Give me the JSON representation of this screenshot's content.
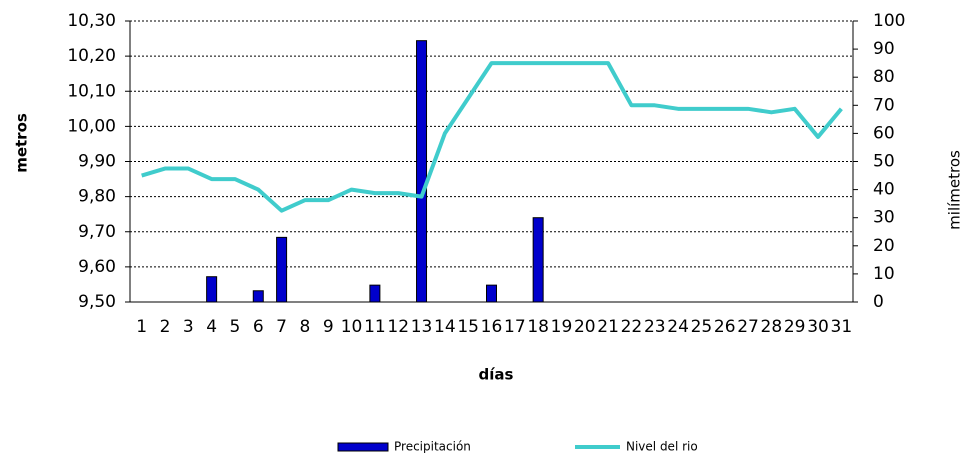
{
  "chart_data": {
    "type": "bar_line",
    "xlabel": "días",
    "ylabel": "metros",
    "y2label": "milímetros",
    "categories": [
      "1",
      "2",
      "3",
      "4",
      "5",
      "6",
      "7",
      "8",
      "9",
      "10",
      "11",
      "12",
      "13",
      "14",
      "15",
      "16",
      "17",
      "18",
      "19",
      "20",
      "21",
      "22",
      "23",
      "24",
      "25",
      "26",
      "27",
      "28",
      "29",
      "30",
      "31"
    ],
    "series": [
      {
        "name": "Precipitación",
        "kind": "bar",
        "axis": "y2",
        "color": "#0000cc",
        "values": [
          0,
          0,
          0,
          9,
          0,
          4,
          23,
          0,
          0,
          0,
          6,
          0,
          93,
          0,
          0,
          6,
          0,
          30,
          0,
          0,
          0,
          0,
          0,
          0,
          0,
          0,
          0,
          0,
          0,
          0,
          0
        ]
      },
      {
        "name": "Nivel del rio",
        "kind": "line",
        "color": "#40cccc",
        "values": [
          9.86,
          9.88,
          9.88,
          9.85,
          9.85,
          9.82,
          9.76,
          9.79,
          9.79,
          9.82,
          9.81,
          9.81,
          9.8,
          9.98,
          10.08,
          10.18,
          10.18,
          10.18,
          10.18,
          10.18,
          10.18,
          10.06,
          10.06,
          10.05,
          10.05,
          10.05,
          10.05,
          10.04,
          10.05,
          9.97,
          10.05
        ]
      }
    ],
    "ylim": [
      9.5,
      10.3
    ],
    "yticks": [
      {
        "value": 9.5,
        "label": "9,50"
      },
      {
        "value": 9.6,
        "label": "9,60"
      },
      {
        "value": 9.7,
        "label": "9,70"
      },
      {
        "value": 9.8,
        "label": "9,80"
      },
      {
        "value": 9.9,
        "label": "9,90"
      },
      {
        "value": 10.0,
        "label": "10,00"
      },
      {
        "value": 10.1,
        "label": "10,10"
      },
      {
        "value": 10.2,
        "label": "10,20"
      },
      {
        "value": 10.3,
        "label": "10,30"
      }
    ],
    "y2lim": [
      0,
      100
    ],
    "y2ticks": [
      0,
      10,
      20,
      30,
      40,
      50,
      60,
      70,
      80,
      90,
      100
    ],
    "grid": true,
    "legend": "bottom"
  }
}
